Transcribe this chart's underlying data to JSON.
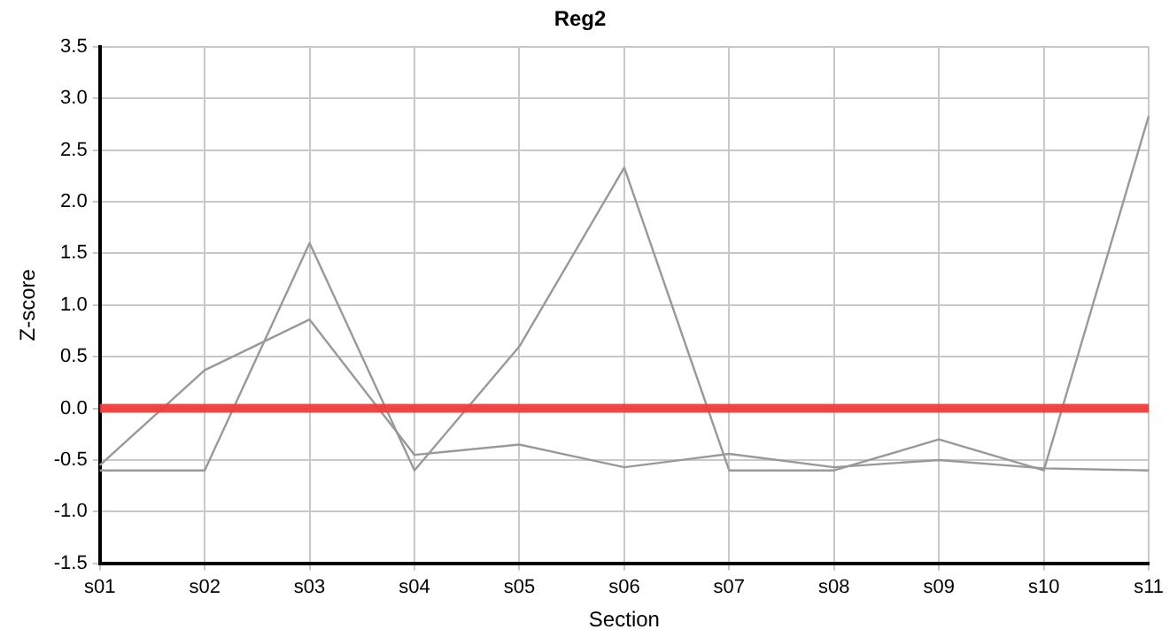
{
  "chart_data": {
    "type": "line",
    "title": "Reg2",
    "xlabel": "Section",
    "ylabel": "Z-score",
    "categories": [
      "s01",
      "s02",
      "s03",
      "s04",
      "s05",
      "s06",
      "s07",
      "s08",
      "s09",
      "s10",
      "s11"
    ],
    "series": [
      {
        "color": "#999999",
        "values": [
          -0.55,
          0.37,
          0.86,
          -0.45,
          -0.35,
          -0.57,
          -0.44,
          -0.57,
          -0.5,
          -0.58,
          -0.6
        ]
      },
      {
        "color": "#999999",
        "values": [
          -0.6,
          -0.6,
          1.6,
          -0.6,
          0.6,
          2.33,
          -0.6,
          -0.6,
          -0.3,
          -0.6,
          2.83
        ]
      }
    ],
    "ylim": [
      -1.5,
      3.5
    ],
    "yticks": [
      {
        "value": -1.5,
        "label": "-1.5"
      },
      {
        "value": -1,
        "label": "-1.0"
      },
      {
        "value": -0.5,
        "label": "-0.5"
      },
      {
        "value": 0,
        "label": "0.0"
      },
      {
        "value": 0.5,
        "label": "0.5"
      },
      {
        "value": 1,
        "label": "1.0"
      },
      {
        "value": 1.5,
        "label": "1.5"
      },
      {
        "value": 2,
        "label": "2.0"
      },
      {
        "value": 2.5,
        "label": "2.5"
      },
      {
        "value": 3,
        "label": "3.0"
      },
      {
        "value": 3.5,
        "label": "3.5"
      }
    ],
    "ref_lines": [
      {
        "axis": "y",
        "value": 0,
        "color": "#f03c3c"
      }
    ],
    "grid": true,
    "legend": false,
    "marker": "none",
    "line_style": "solid"
  }
}
